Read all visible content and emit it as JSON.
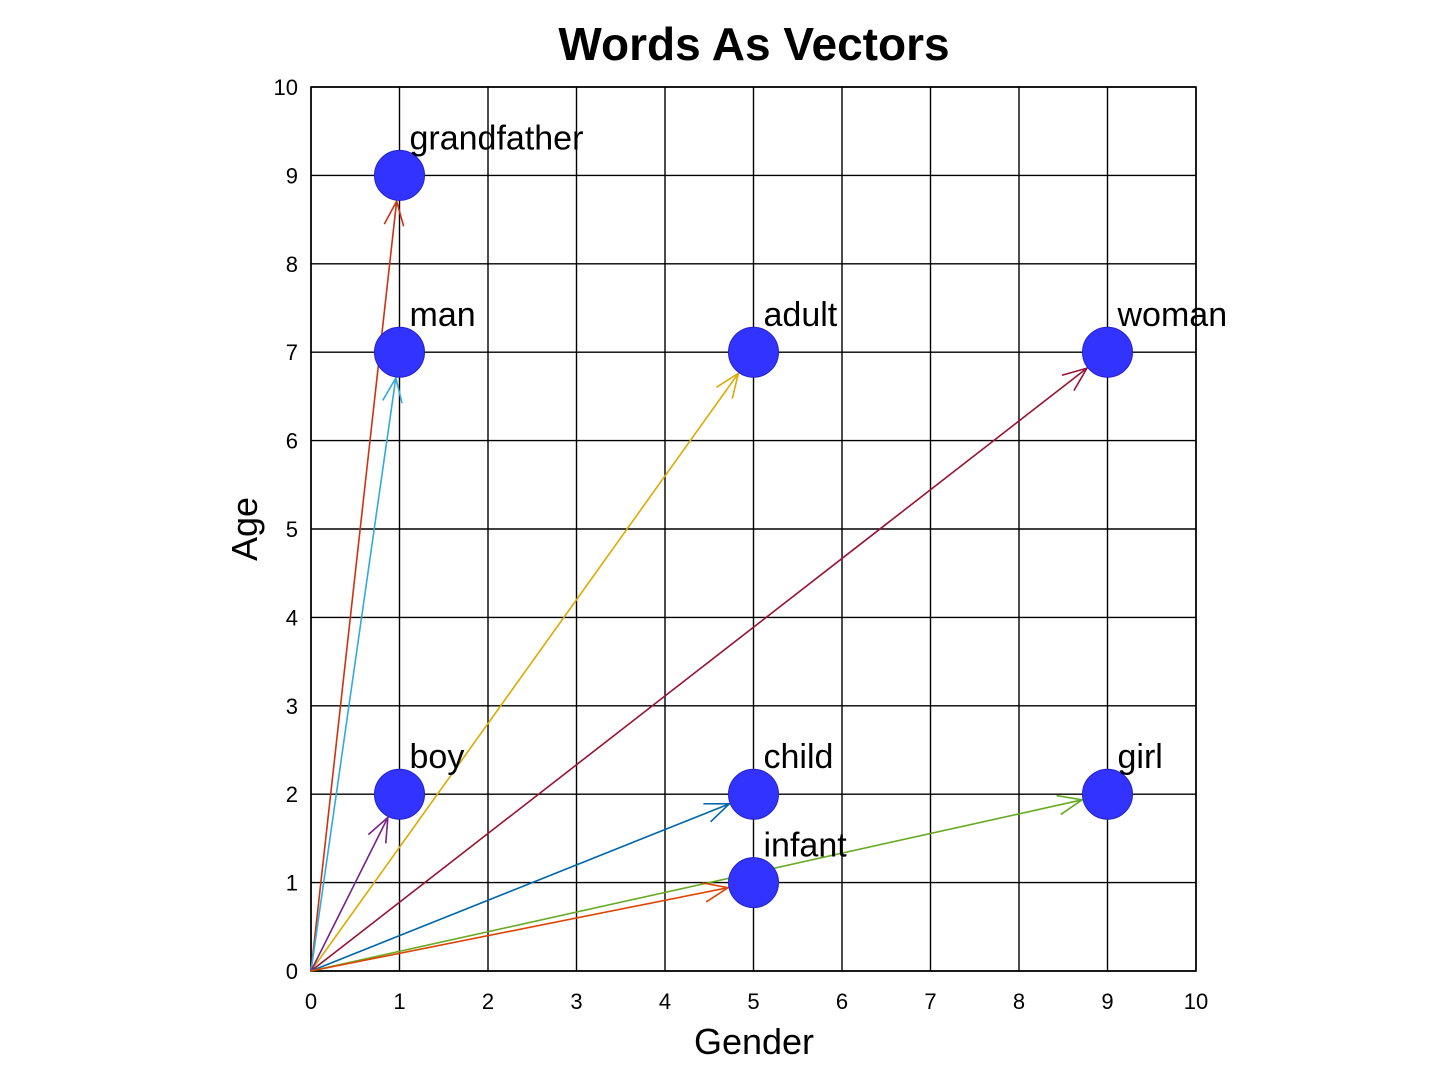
{
  "chart_data": {
    "type": "scatter",
    "title": "Words As Vectors",
    "xlabel": "Gender",
    "ylabel": "Age",
    "xlim": [
      0,
      10
    ],
    "ylim": [
      0,
      10
    ],
    "xticks": [
      0,
      1,
      2,
      3,
      4,
      5,
      6,
      7,
      8,
      9,
      10
    ],
    "yticks": [
      0,
      1,
      2,
      3,
      4,
      5,
      6,
      7,
      8,
      9,
      10
    ],
    "grid": true,
    "origin": [
      0,
      0
    ],
    "point_color": "#3333ff",
    "points": [
      {
        "label": "grandfather",
        "x": 1,
        "y": 9,
        "vector_color": "#cc3311"
      },
      {
        "label": "man",
        "x": 1,
        "y": 7,
        "vector_color": "#33aadd"
      },
      {
        "label": "adult",
        "x": 5,
        "y": 7,
        "vector_color": "#ddaa00"
      },
      {
        "label": "woman",
        "x": 9,
        "y": 7,
        "vector_color": "#991133"
      },
      {
        "label": "boy",
        "x": 1,
        "y": 2,
        "vector_color": "#772288"
      },
      {
        "label": "child",
        "x": 5,
        "y": 2,
        "vector_color": "#0066aa"
      },
      {
        "label": "girl",
        "x": 9,
        "y": 2,
        "vector_color": "#66aa22"
      },
      {
        "label": "infant",
        "x": 5,
        "y": 1,
        "vector_color": "#dd4400"
      }
    ]
  }
}
